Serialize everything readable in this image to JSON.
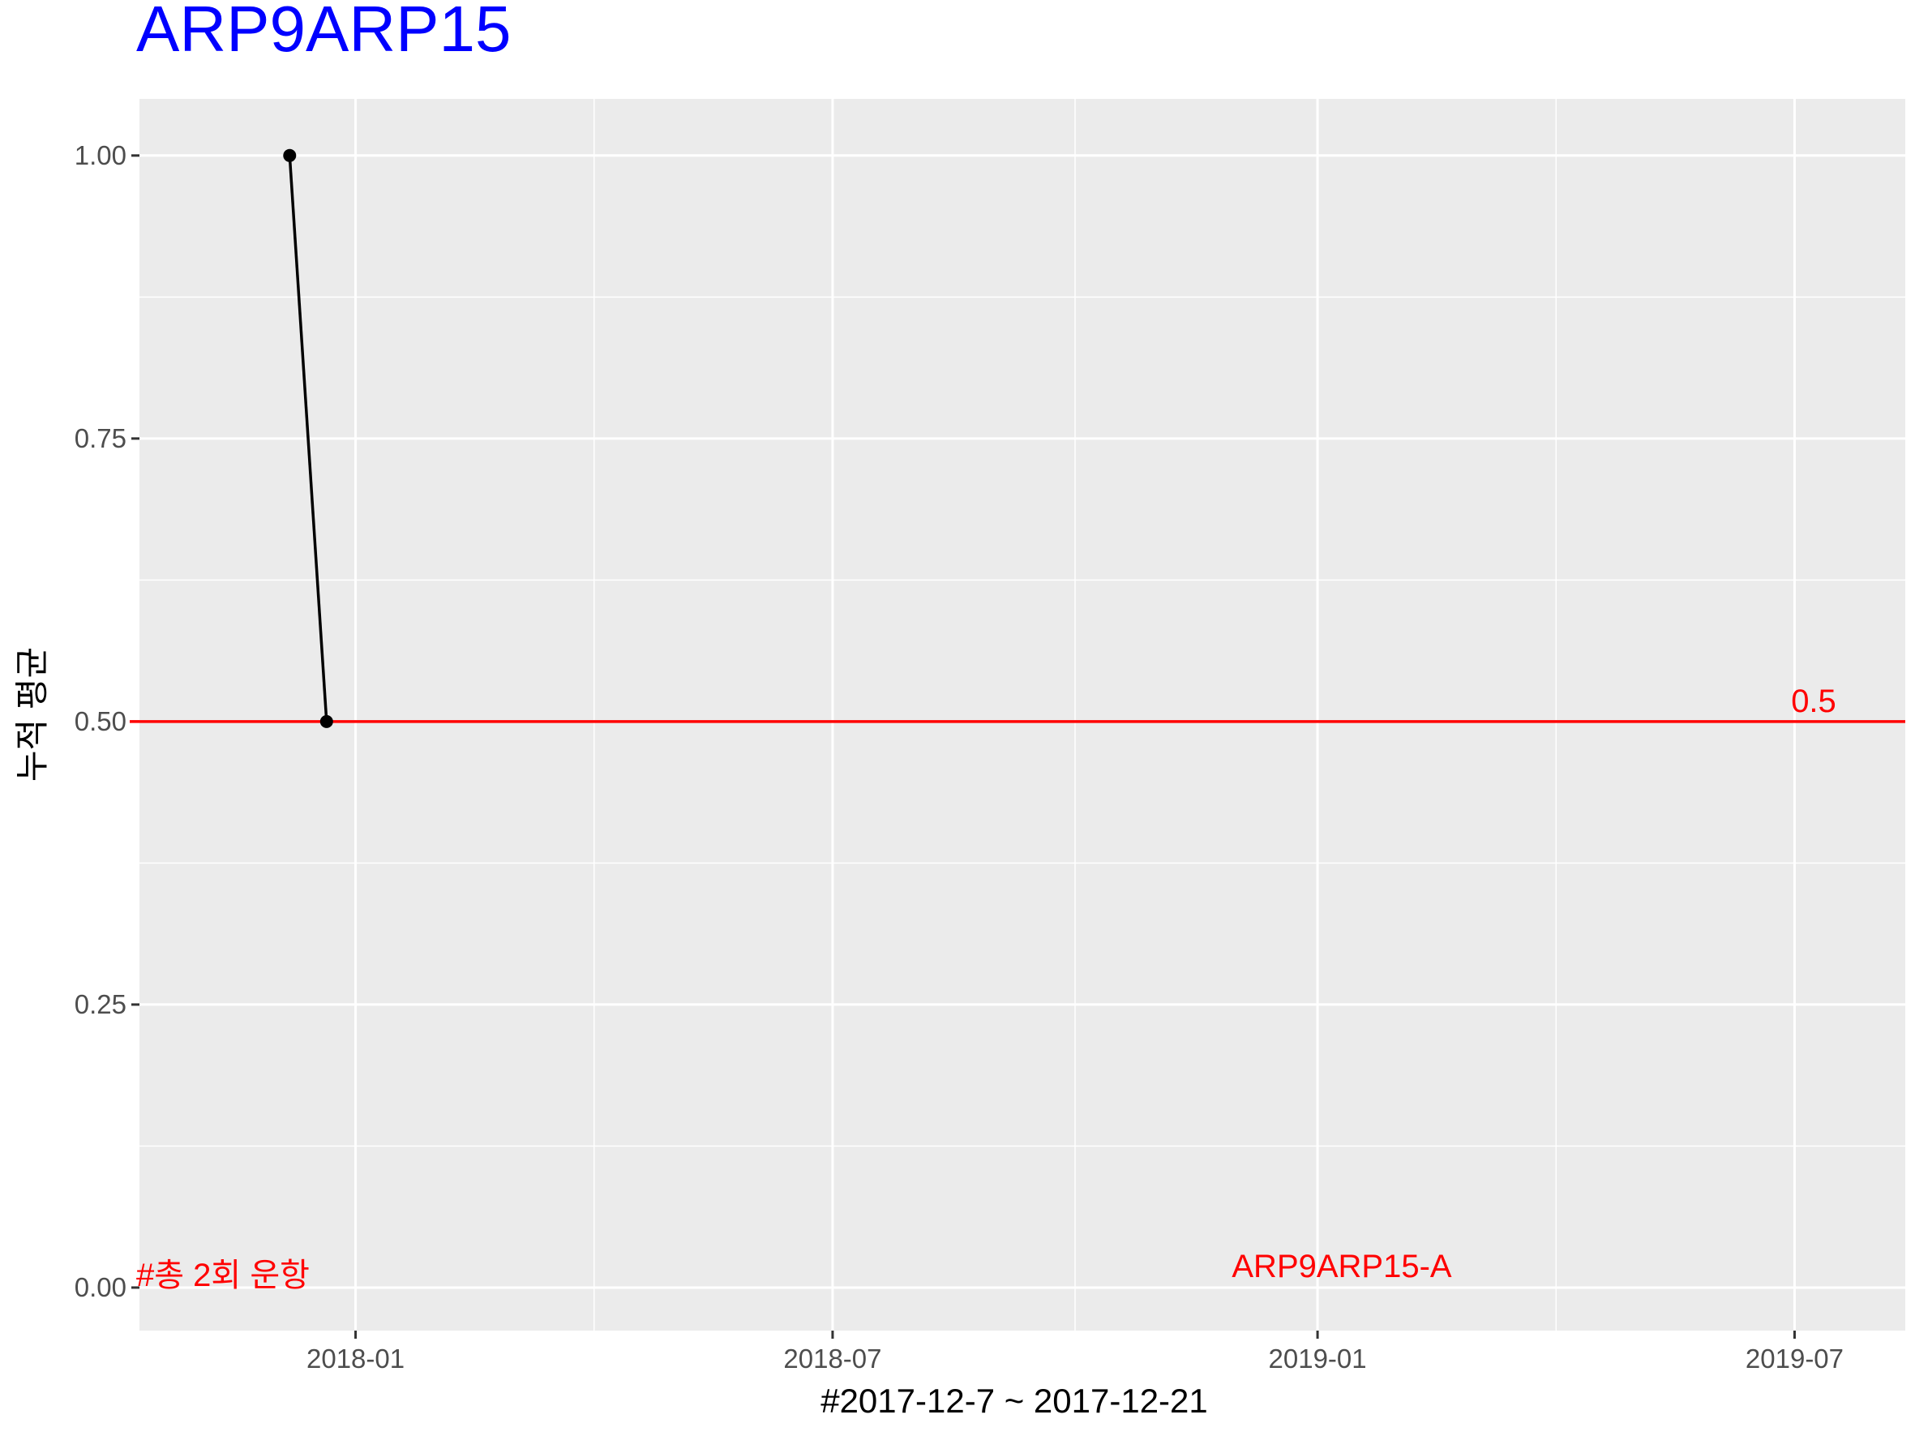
{
  "chart_data": {
    "type": "line",
    "title": "ARP9ARP15",
    "title_color": "#0000ff",
    "xlabel": "#2017-12-7 ~ 2017-12-21",
    "ylabel": "누적 평균",
    "x_ticks": [
      "2018-01",
      "2018-07",
      "2019-01",
      "2019-07"
    ],
    "x_tick_dates": [
      "2018-01-01",
      "2018-07-01",
      "2019-01-01",
      "2019-07-01"
    ],
    "xlim": [
      "2017-10-11",
      "2019-08-12"
    ],
    "y_ticks": [
      "0.00",
      "0.25",
      "0.50",
      "0.75",
      "1.00"
    ],
    "y_tick_values": [
      0,
      0.25,
      0.5,
      0.75,
      1.0
    ],
    "ylim": [
      -0.038,
      1.05
    ],
    "grid": true,
    "panel_background": "#ebebeb",
    "series": [
      {
        "x": [
          "2017-12-07",
          "2017-12-21"
        ],
        "y": [
          1.0,
          0.5
        ],
        "color": "#000000"
      }
    ],
    "hline": {
      "y": 0.5,
      "label": "0.5",
      "color": "#ff0000"
    },
    "annotations": [
      {
        "text": "#총 2회 운항",
        "color": "#ff0000"
      },
      {
        "text": "ARP9ARP15-A",
        "color": "#ff0000"
      }
    ]
  }
}
